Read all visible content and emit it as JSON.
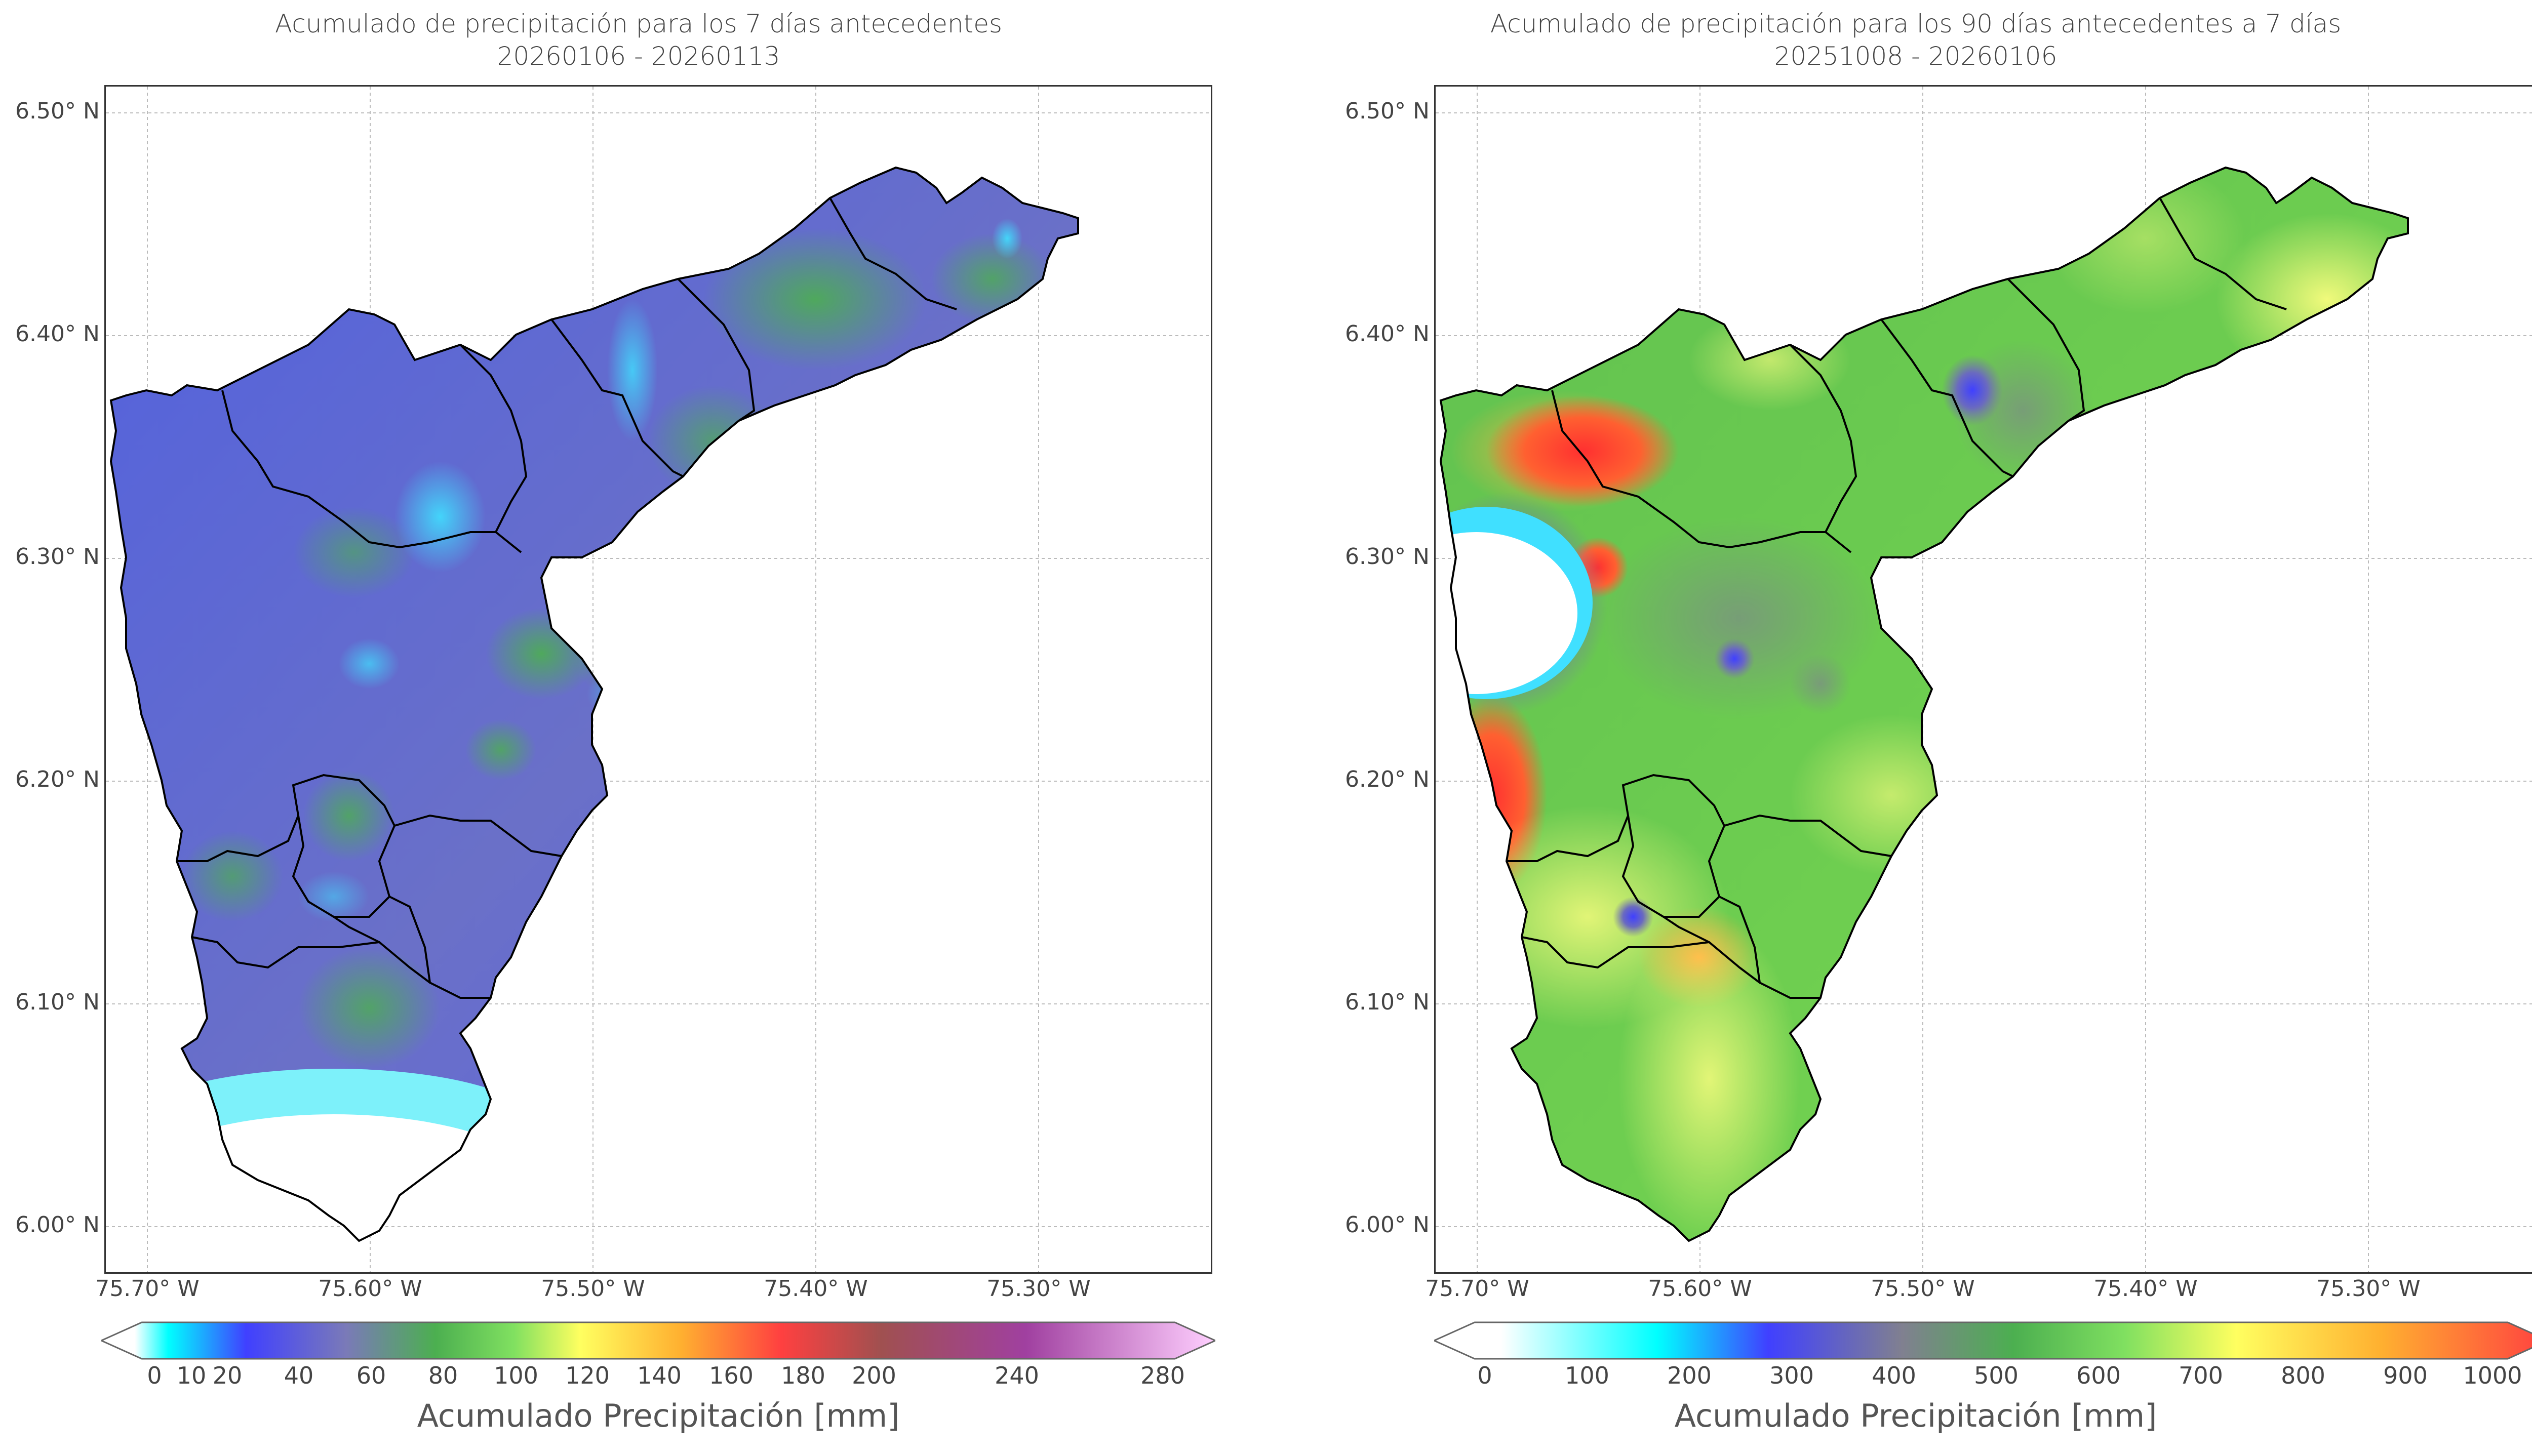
{
  "left": {
    "title_line1": "Acumulado de precipitación para los 7 días antecedentes",
    "title_line2": "20260106 - 20260113",
    "y_ticks": [
      "6.50° N",
      "6.40° N",
      "6.30° N",
      "6.20° N",
      "6.10° N",
      "6.00° N"
    ],
    "x_ticks": [
      "75.70° W",
      "75.60° W",
      "75.50° W",
      "75.40° W",
      "75.30° W"
    ],
    "colorbar_ticks": [
      "0",
      "10",
      "20",
      "40",
      "60",
      "80",
      "100",
      "120",
      "140",
      "160",
      "180",
      "200",
      "240",
      "280"
    ],
    "colorbar_label": "Acumulado Precipitación [mm]"
  },
  "right": {
    "title_line1": "Acumulado de precipitación para los 90 días antecedentes a 7 días",
    "title_line2": "20251008 - 20260106",
    "y_ticks": [
      "6.50° N",
      "6.40° N",
      "6.30° N",
      "6.20° N",
      "6.10° N",
      "6.00° N"
    ],
    "x_ticks": [
      "75.70° W",
      "75.60° W",
      "75.50° W",
      "75.40° W",
      "75.30° W"
    ],
    "colorbar_ticks": [
      "0",
      "100",
      "200",
      "300",
      "400",
      "500",
      "600",
      "700",
      "800",
      "900",
      "1000"
    ],
    "colorbar_label": "Acumulado Precipitación [mm]"
  },
  "colors": {
    "left_scale": [
      "#ffffff",
      "#00ffff",
      "#4040ff",
      "#7a7ac0",
      "#4caf50",
      "#80e060",
      "#ffff60",
      "#ffb030",
      "#ff4040",
      "#a04080",
      "#ffd0ff"
    ],
    "right_scale": [
      "#ffffff",
      "#00ffff",
      "#4040ff",
      "#808080",
      "#4caf50",
      "#80e060",
      "#ffff60",
      "#ffb030",
      "#ff4040"
    ]
  }
}
